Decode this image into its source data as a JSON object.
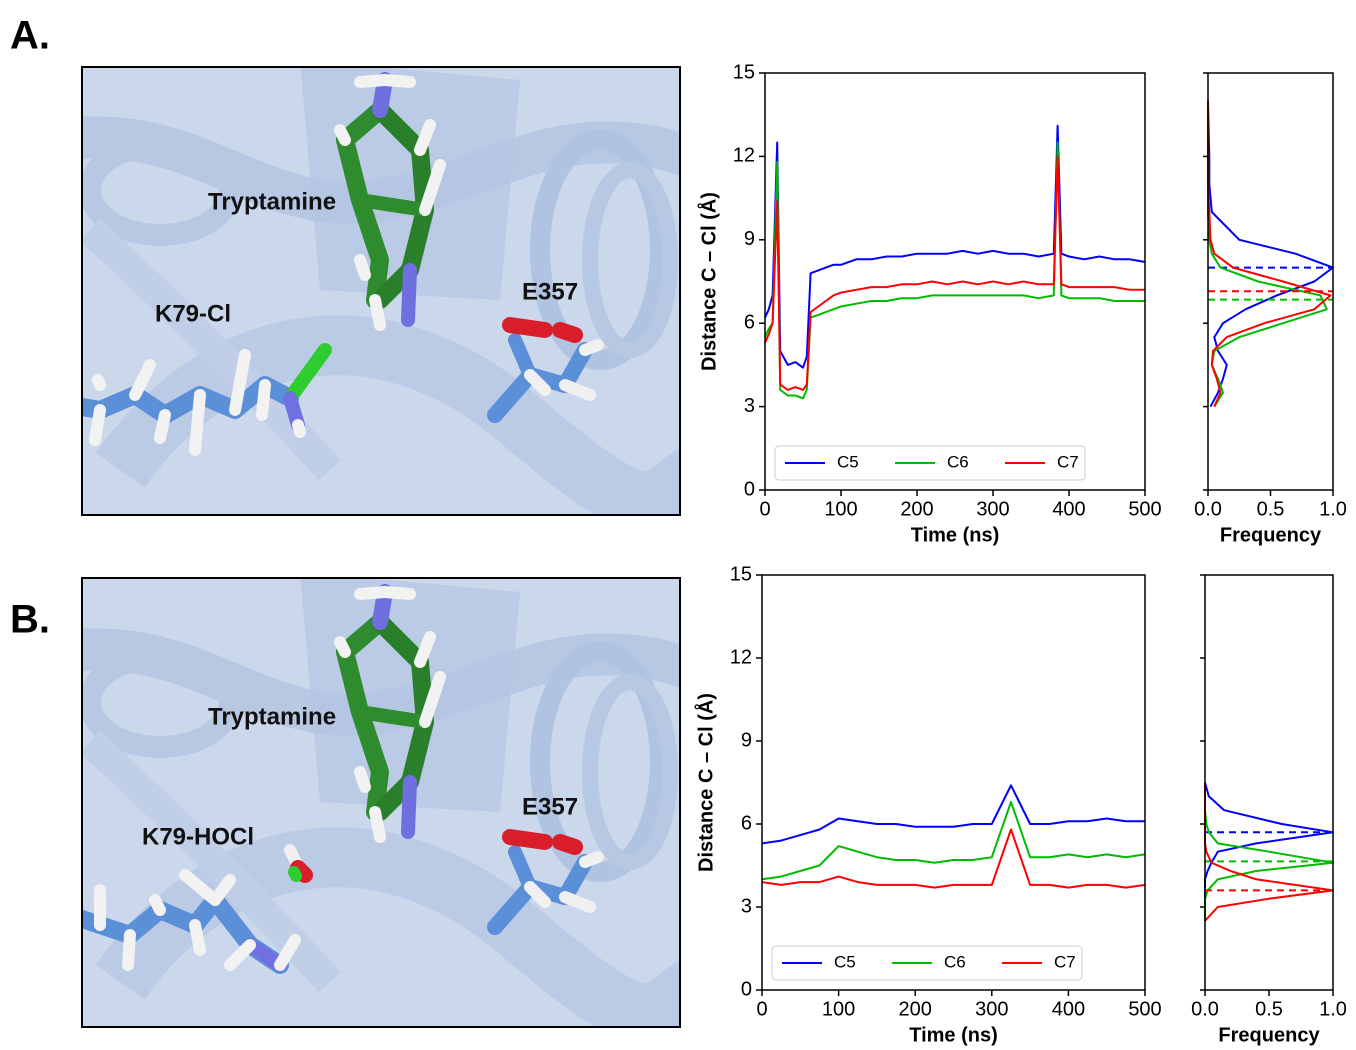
{
  "figure": {
    "panels": [
      {
        "label": "A.",
        "structure_labels": [
          "Tryptamine",
          "K79-Cl",
          "E357"
        ]
      },
      {
        "label": "B.",
        "structure_labels": [
          "Tryptamine",
          "K79-HOCl",
          "E357"
        ]
      }
    ]
  },
  "chart_data": [
    {
      "type": "line",
      "xlabel": "Time (ns)",
      "ylabel": "Distance C – Cl (Å)",
      "x": [
        0,
        5,
        10,
        16,
        20,
        30,
        40,
        50,
        55,
        60,
        70,
        80,
        90,
        100,
        120,
        140,
        160,
        180,
        200,
        220,
        240,
        260,
        280,
        300,
        320,
        340,
        360,
        380,
        385,
        390,
        400,
        420,
        440,
        460,
        480,
        500
      ],
      "xlim": [
        0,
        500
      ],
      "xticks": [
        0,
        100,
        200,
        300,
        400,
        500
      ],
      "ylim": [
        0,
        15
      ],
      "yticks": [
        0,
        3,
        6,
        9,
        12,
        15
      ],
      "legend": "lower left",
      "series": [
        {
          "name": "C5",
          "color": "#0000ff",
          "values": [
            6.2,
            6.5,
            7,
            12.5,
            5,
            4.5,
            4.6,
            4.4,
            4.8,
            7.8,
            7.9,
            8,
            8.1,
            8.1,
            8.3,
            8.3,
            8.4,
            8.4,
            8.5,
            8.5,
            8.5,
            8.6,
            8.5,
            8.6,
            8.5,
            8.5,
            8.4,
            8.5,
            13.1,
            8.5,
            8.4,
            8.3,
            8.4,
            8.3,
            8.3,
            8.2
          ]
        },
        {
          "name": "C6",
          "color": "#00bb00",
          "values": [
            5.5,
            5.8,
            6,
            11.8,
            3.6,
            3.4,
            3.4,
            3.3,
            3.6,
            6.2,
            6.3,
            6.4,
            6.5,
            6.6,
            6.7,
            6.8,
            6.8,
            6.9,
            6.9,
            7,
            7,
            7,
            7,
            7,
            7,
            7,
            6.9,
            7,
            12.5,
            7,
            6.9,
            6.9,
            6.9,
            6.8,
            6.8,
            6.8
          ]
        },
        {
          "name": "C7",
          "color": "#ff0000",
          "values": [
            5.3,
            5.6,
            6,
            10.4,
            3.8,
            3.6,
            3.7,
            3.6,
            3.8,
            6.4,
            6.6,
            6.8,
            7,
            7.1,
            7.2,
            7.3,
            7.3,
            7.4,
            7.4,
            7.5,
            7.4,
            7.5,
            7.4,
            7.5,
            7.4,
            7.5,
            7.4,
            7.4,
            12,
            7.4,
            7.3,
            7.3,
            7.3,
            7.3,
            7.2,
            7.2
          ]
        }
      ]
    },
    {
      "type": "density",
      "orientation": "horizontal",
      "ylabel": "Frequency",
      "x": [
        3,
        3.5,
        4,
        4.5,
        5,
        5.5,
        6,
        6.5,
        7,
        7.5,
        8,
        8.5,
        9,
        10,
        11,
        12,
        13,
        14
      ],
      "xlim": [
        0,
        15
      ],
      "xticks": [
        0,
        3,
        6,
        9,
        12,
        15
      ],
      "ylim": [
        0,
        1
      ],
      "yticks": [
        {
          "value": 0,
          "label": "0.0"
        },
        0.5,
        {
          "value": 1,
          "label": "1.0"
        }
      ],
      "series": [
        {
          "color": "#0000ff",
          "mean": 8.0,
          "values": [
            0.02,
            0.08,
            0.12,
            0.15,
            0.08,
            0.05,
            0.12,
            0.3,
            0.55,
            0.85,
            1.0,
            0.7,
            0.25,
            0.03,
            0.01,
            0.01,
            0.005,
            0
          ]
        },
        {
          "color": "#00bb00",
          "mean": 6.85,
          "values": [
            0.05,
            0.12,
            0.08,
            0.03,
            0.05,
            0.25,
            0.6,
            0.95,
            0.9,
            0.4,
            0.1,
            0.03,
            0.01,
            0,
            0,
            0,
            0,
            0
          ]
        },
        {
          "color": "#ff0000",
          "mean": 7.15,
          "values": [
            0.05,
            0.1,
            0.07,
            0.03,
            0.04,
            0.15,
            0.45,
            0.85,
            0.98,
            0.6,
            0.2,
            0.05,
            0.02,
            0.01,
            0,
            0,
            0,
            0
          ]
        }
      ]
    },
    {
      "type": "line",
      "xlabel": "Time (ns)",
      "ylabel": "Distance C – Cl (Å)",
      "x": [
        0,
        25,
        50,
        75,
        100,
        125,
        150,
        175,
        200,
        225,
        250,
        275,
        300,
        325,
        350,
        375,
        400,
        425,
        450,
        475,
        500
      ],
      "xlim": [
        0,
        500
      ],
      "xticks": [
        0,
        100,
        200,
        300,
        400,
        500
      ],
      "ylim": [
        0,
        15
      ],
      "yticks": [
        0,
        3,
        6,
        9,
        12,
        15
      ],
      "legend": "lower left",
      "series": [
        {
          "name": "C5",
          "color": "#0000ff",
          "values": [
            5.3,
            5.4,
            5.6,
            5.8,
            6.2,
            6.1,
            6,
            6,
            5.9,
            5.9,
            5.9,
            6,
            6,
            7.4,
            6,
            6,
            6.1,
            6.1,
            6.2,
            6.1,
            6.1
          ]
        },
        {
          "name": "C6",
          "color": "#00bb00",
          "values": [
            4.0,
            4.1,
            4.3,
            4.5,
            5.2,
            5.0,
            4.8,
            4.7,
            4.7,
            4.6,
            4.7,
            4.7,
            4.8,
            6.8,
            4.8,
            4.8,
            4.9,
            4.8,
            4.9,
            4.8,
            4.9
          ]
        },
        {
          "name": "C7",
          "color": "#ff0000",
          "values": [
            3.9,
            3.8,
            3.9,
            3.9,
            4.1,
            3.9,
            3.8,
            3.8,
            3.8,
            3.7,
            3.8,
            3.8,
            3.8,
            5.8,
            3.8,
            3.8,
            3.7,
            3.8,
            3.8,
            3.7,
            3.8
          ]
        }
      ]
    },
    {
      "type": "density",
      "orientation": "horizontal",
      "ylabel": "Frequency",
      "x": [
        2.5,
        3,
        3.3,
        3.6,
        4,
        4.3,
        4.6,
        5,
        5.3,
        5.7,
        6,
        6.5,
        7,
        7.5
      ],
      "xlim": [
        0,
        15
      ],
      "xticks": [
        0,
        3,
        6,
        9,
        12,
        15
      ],
      "ylim": [
        0,
        1
      ],
      "yticks": [
        {
          "value": 0,
          "label": "0.0"
        },
        0.5,
        {
          "value": 1,
          "label": "1.0"
        }
      ],
      "series": [
        {
          "color": "#0000ff",
          "mean": 5.7,
          "values": [
            0,
            0,
            0,
            0,
            0,
            0.02,
            0.05,
            0.1,
            0.4,
            1.0,
            0.6,
            0.15,
            0.03,
            0
          ]
        },
        {
          "color": "#00bb00",
          "mean": 4.65,
          "values": [
            0,
            0,
            0,
            0.02,
            0.1,
            0.4,
            1.0,
            0.5,
            0.1,
            0.03,
            0.01,
            0,
            0,
            0
          ]
        },
        {
          "color": "#ff0000",
          "mean": 3.6,
          "values": [
            0,
            0.1,
            0.5,
            1.0,
            0.4,
            0.2,
            0.05,
            0.01,
            0,
            0,
            0,
            0,
            0,
            0
          ]
        }
      ]
    }
  ]
}
